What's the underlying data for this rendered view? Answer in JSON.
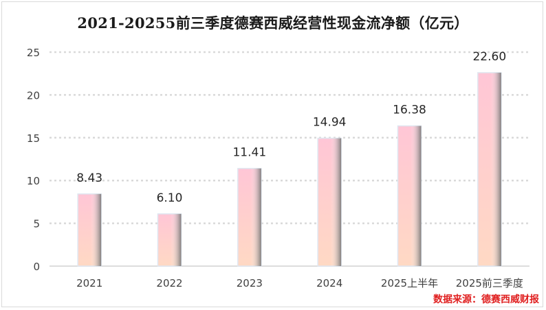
{
  "chart_data": {
    "type": "bar",
    "title": "2021-20255前三季度德赛西威经营性现金流净额（亿元）",
    "categories": [
      "2021",
      "2022",
      "2023",
      "2024",
      "2025上半年",
      "2025前三季度"
    ],
    "values": [
      8.43,
      6.1,
      11.41,
      14.94,
      16.38,
      22.6
    ],
    "value_labels": [
      "8.43",
      "6.10",
      "11.41",
      "14.94",
      "16.38",
      "22.60"
    ],
    "ylim": [
      0,
      25
    ],
    "yticks": [
      0,
      5,
      10,
      15,
      20,
      25
    ],
    "xlabel": "",
    "ylabel": "",
    "grid": true,
    "legend": "none",
    "bar_color_top": "#ffc8d8",
    "bar_color_bottom": "#ffd6c0",
    "bar_edge_color": "#6b6b6b",
    "grid_color": "#d9d9d9"
  },
  "source_note": "数据来源：德赛西威财报"
}
